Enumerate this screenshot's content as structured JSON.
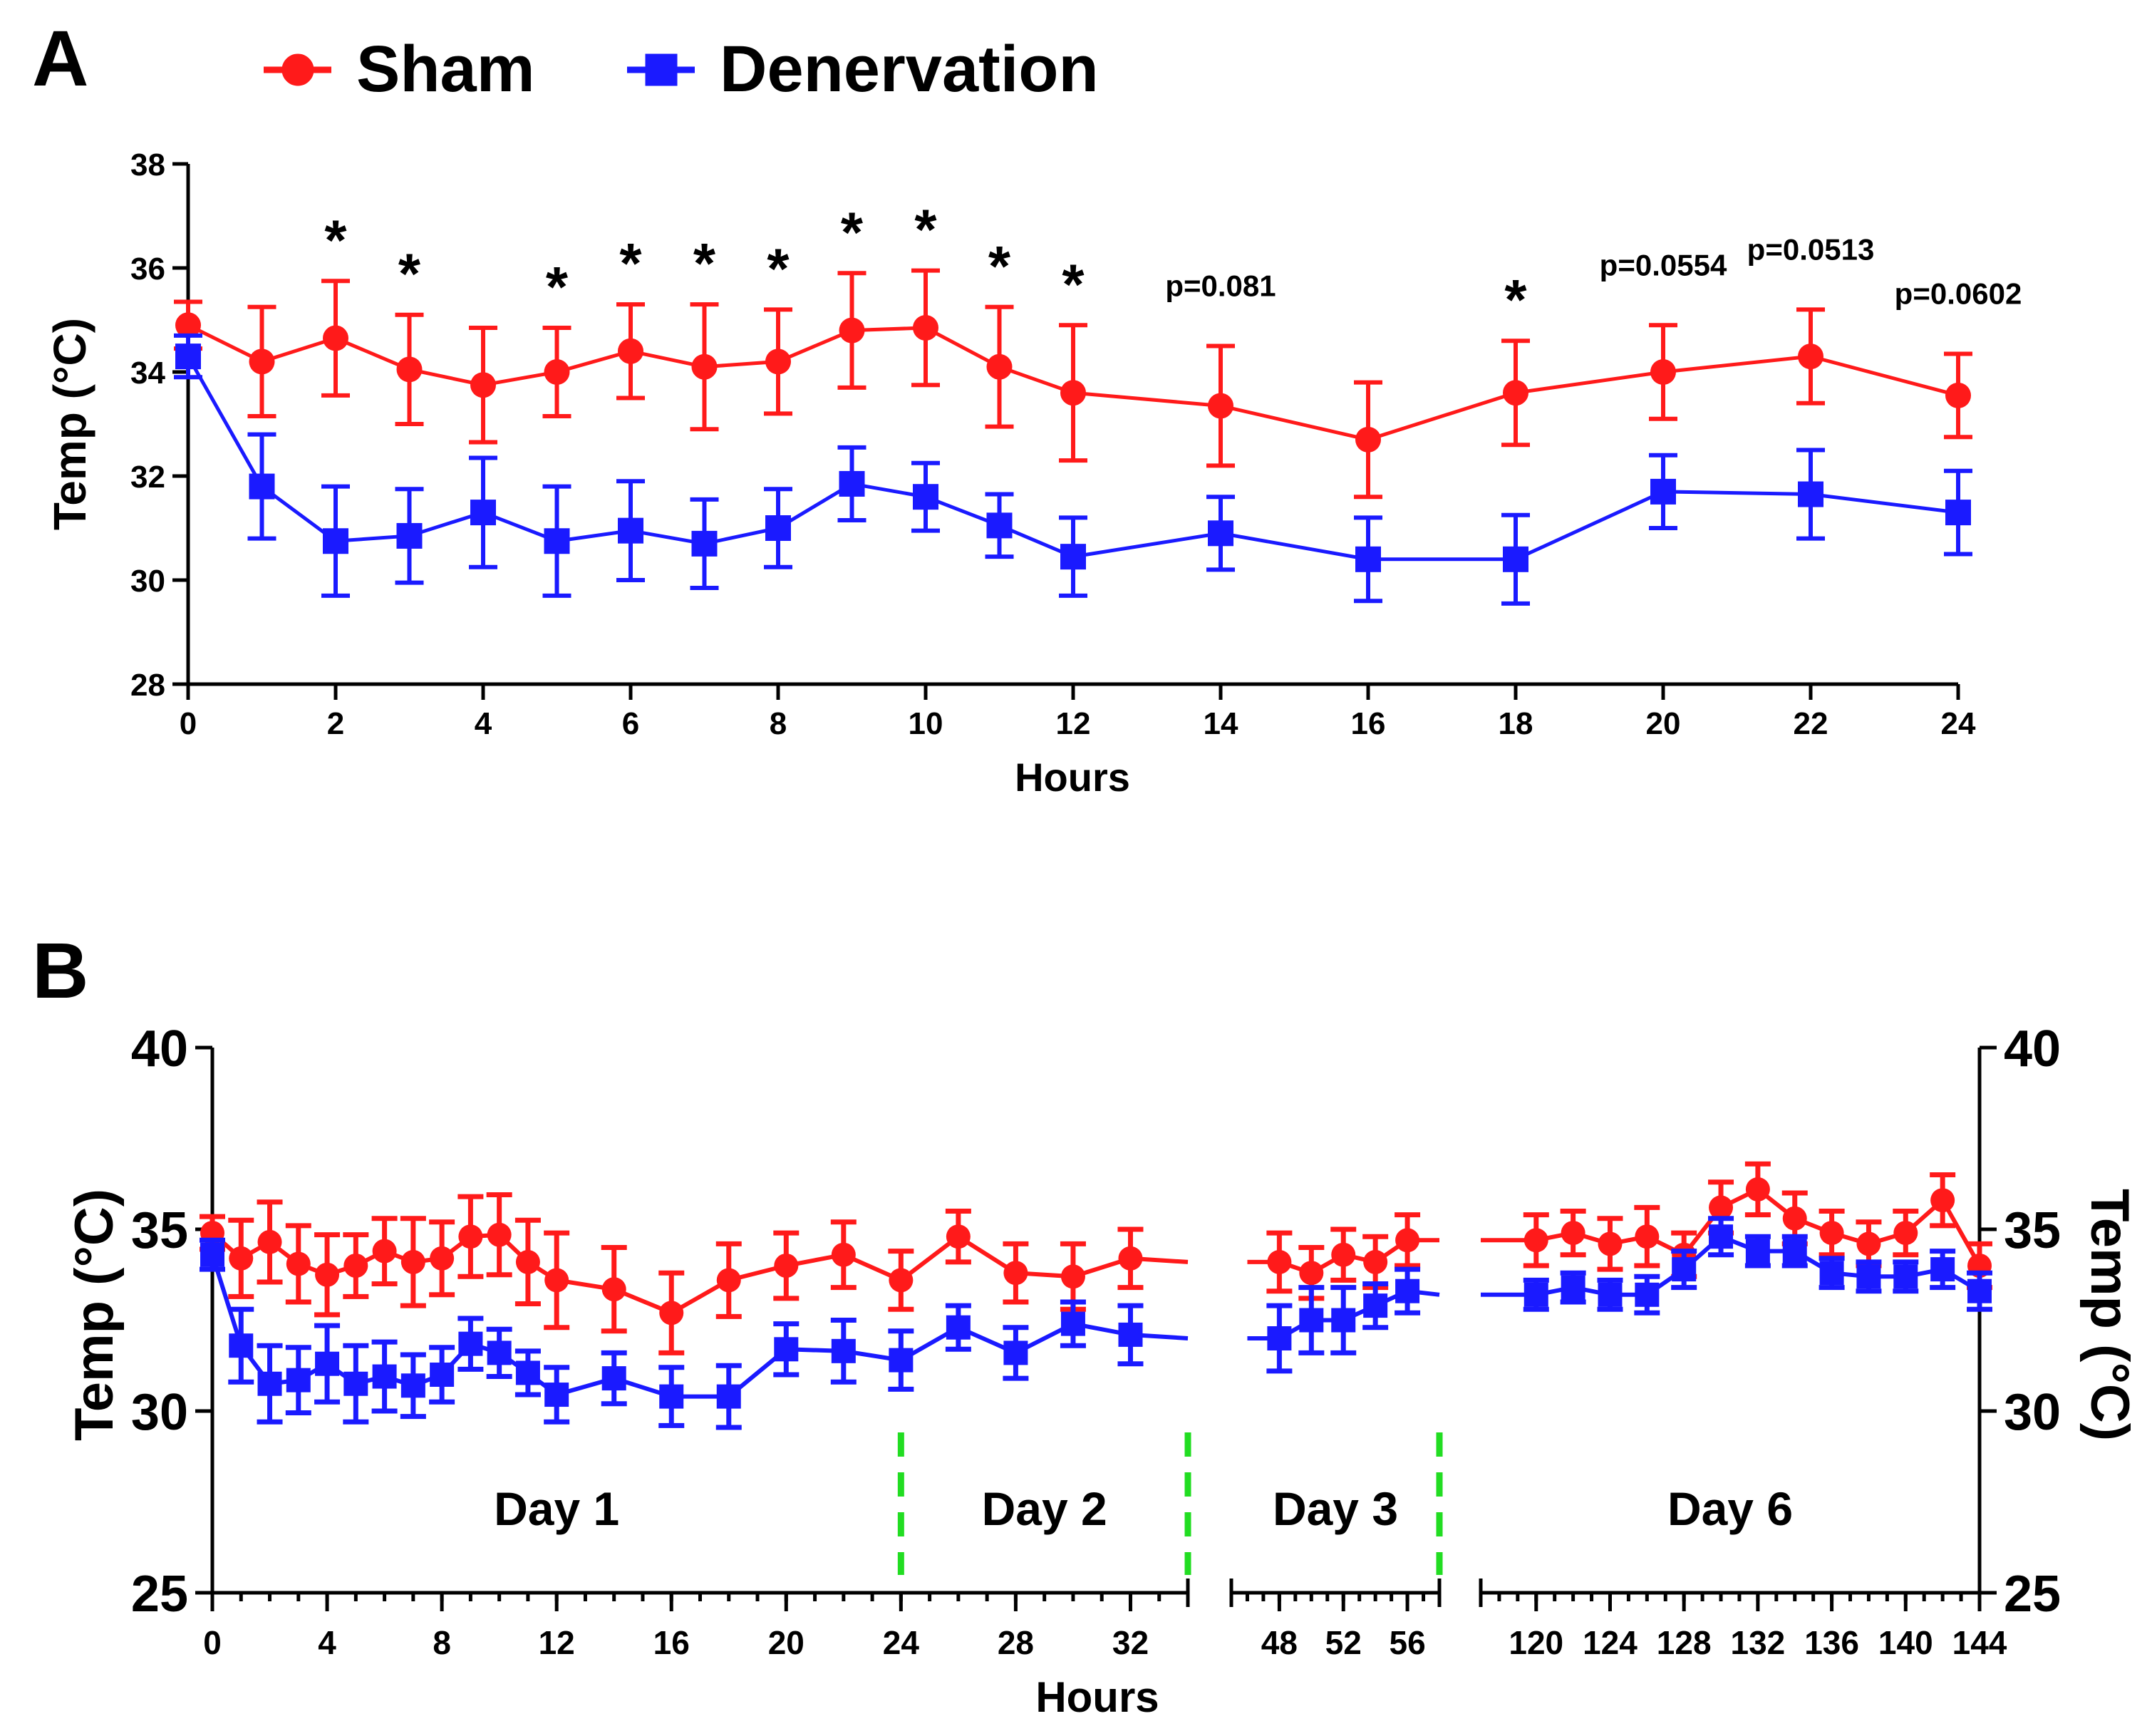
{
  "chart_data": [
    {
      "type": "line",
      "panel_label": "A",
      "legend": {
        "placement": "top",
        "entries": [
          {
            "name": "Sham",
            "marker": "circle",
            "color": "#ff1a1a"
          },
          {
            "name": "Denervation",
            "marker": "square",
            "color": "#1a1aff"
          }
        ]
      },
      "xlabel": "Hours",
      "ylabel": "Temp (°C)",
      "xlim": [
        0,
        24
      ],
      "ylim": [
        28,
        38
      ],
      "xticks": [
        0,
        2,
        4,
        6,
        8,
        10,
        12,
        14,
        16,
        18,
        20,
        22,
        24
      ],
      "yticks": [
        28,
        30,
        32,
        34,
        36,
        38
      ],
      "series": [
        {
          "name": "Sham",
          "color": "#ff1a1a",
          "x": [
            0,
            1,
            2,
            3,
            4,
            5,
            6,
            7,
            8,
            9,
            10,
            11,
            12,
            14,
            16,
            18,
            20,
            22,
            24
          ],
          "y": [
            34.9,
            34.2,
            34.65,
            34.05,
            33.75,
            34.0,
            34.4,
            34.1,
            34.2,
            34.8,
            34.85,
            34.1,
            33.6,
            33.35,
            32.7,
            33.6,
            34.0,
            34.3,
            33.55
          ],
          "err": [
            0.45,
            1.05,
            1.1,
            1.05,
            1.1,
            0.85,
            0.9,
            1.2,
            1.0,
            1.1,
            1.1,
            1.15,
            1.3,
            1.15,
            1.1,
            1.0,
            0.9,
            0.9,
            0.8
          ]
        },
        {
          "name": "Denervation",
          "color": "#1a1aff",
          "x": [
            0,
            1,
            2,
            3,
            4,
            5,
            6,
            7,
            8,
            9,
            10,
            11,
            12,
            14,
            16,
            18,
            20,
            22,
            24
          ],
          "y": [
            34.3,
            31.8,
            30.75,
            30.85,
            31.3,
            30.75,
            30.95,
            30.7,
            31.0,
            31.85,
            31.6,
            31.05,
            30.45,
            30.9,
            30.4,
            30.4,
            31.7,
            31.65,
            31.3
          ],
          "err": [
            0.4,
            1.0,
            1.05,
            0.9,
            1.05,
            1.05,
            0.95,
            0.85,
            0.75,
            0.7,
            0.65,
            0.6,
            0.75,
            0.7,
            0.8,
            0.85,
            0.7,
            0.85,
            0.8
          ]
        }
      ],
      "annotations": [
        {
          "x": 2,
          "text": "*"
        },
        {
          "x": 3,
          "text": "*"
        },
        {
          "x": 5,
          "text": "*"
        },
        {
          "x": 6,
          "text": "*"
        },
        {
          "x": 7,
          "text": "*"
        },
        {
          "x": 8,
          "text": "*"
        },
        {
          "x": 9,
          "text": "*"
        },
        {
          "x": 10,
          "text": "*"
        },
        {
          "x": 11,
          "text": "*"
        },
        {
          "x": 12,
          "text": "*"
        },
        {
          "x": 14,
          "text": "p=0.081"
        },
        {
          "x": 18,
          "text": "*"
        },
        {
          "x": 20,
          "text": "p=0.0554"
        },
        {
          "x": 22,
          "text": "p=0.0513"
        },
        {
          "x": 24,
          "text": "p=0.0602"
        }
      ]
    },
    {
      "type": "line",
      "panel_label": "B",
      "xlabel": "Hours",
      "ylabel": "Temp (°C)",
      "ylabel_right": "Temp (°C)",
      "ylim": [
        25,
        40
      ],
      "yticks": [
        25,
        30,
        35,
        40
      ],
      "x_axis_segments": [
        {
          "range": [
            0,
            34
          ],
          "ticks": [
            0,
            4,
            8,
            12,
            16,
            20,
            24,
            28,
            32
          ]
        },
        {
          "range": [
            45,
            58
          ],
          "ticks": [
            48,
            52,
            56
          ]
        },
        {
          "range": [
            117,
            144
          ],
          "ticks": [
            120,
            124,
            128,
            132,
            136,
            140,
            144
          ]
        }
      ],
      "day_labels": [
        {
          "text": "Day 1",
          "center_x": 12
        },
        {
          "text": "Day 2",
          "center_x": 29
        },
        {
          "text": "Day 3",
          "center_x": 51.5
        },
        {
          "text": "Day 6",
          "center_x": 130.5
        }
      ],
      "day_dividers_x": [
        24,
        34,
        58
      ],
      "segments": [
        {
          "series": [
            {
              "name": "Sham",
              "x": [
                0,
                1,
                2,
                3,
                4,
                5,
                6,
                7,
                8,
                9,
                10,
                11,
                12,
                14,
                16,
                18,
                20,
                22,
                24,
                26,
                28,
                30,
                32
              ],
              "y": [
                34.9,
                34.2,
                34.65,
                34.05,
                33.75,
                34.0,
                34.4,
                34.1,
                34.2,
                34.8,
                34.85,
                34.1,
                33.6,
                33.35,
                32.7,
                33.6,
                34.0,
                34.3,
                33.6,
                34.8,
                33.8,
                33.7,
                34.2
              ],
              "err": [
                0.45,
                1.05,
                1.1,
                1.05,
                1.1,
                0.85,
                0.9,
                1.2,
                1.0,
                1.1,
                1.1,
                1.15,
                1.3,
                1.15,
                1.1,
                1.0,
                0.9,
                0.9,
                0.8,
                0.7,
                0.8,
                0.9,
                0.8
              ],
              "tail_to": 34,
              "tail_y": 34.1
            },
            {
              "name": "Denervation",
              "x": [
                0,
                1,
                2,
                3,
                4,
                5,
                6,
                7,
                8,
                9,
                10,
                11,
                12,
                14,
                16,
                18,
                20,
                22,
                24,
                26,
                28,
                30,
                32
              ],
              "y": [
                34.3,
                31.8,
                30.75,
                30.85,
                31.3,
                30.75,
                30.95,
                30.7,
                31.0,
                31.85,
                31.6,
                31.05,
                30.45,
                30.9,
                30.4,
                30.4,
                31.7,
                31.65,
                31.4,
                32.3,
                31.6,
                32.4,
                32.1
              ],
              "err": [
                0.4,
                1.0,
                1.05,
                0.9,
                1.05,
                1.05,
                0.95,
                0.85,
                0.75,
                0.7,
                0.65,
                0.6,
                0.75,
                0.7,
                0.8,
                0.85,
                0.7,
                0.85,
                0.8,
                0.6,
                0.7,
                0.6,
                0.8
              ],
              "tail_to": 34,
              "tail_y": 32.0
            }
          ]
        },
        {
          "series": [
            {
              "name": "Sham",
              "x": [
                46,
                48,
                50,
                52,
                54,
                56
              ],
              "y": [
                34.1,
                34.1,
                33.8,
                34.3,
                34.1,
                34.7
              ],
              "err": [
                0,
                0.8,
                0.7,
                0.7,
                0.7,
                0.7
              ],
              "tail_to": 58,
              "tail_y": 34.7
            },
            {
              "name": "Denervation",
              "x": [
                46,
                48,
                50,
                52,
                54,
                56
              ],
              "y": [
                32.0,
                32.0,
                32.5,
                32.5,
                32.9,
                33.3
              ],
              "err": [
                0,
                0.9,
                0.9,
                0.9,
                0.6,
                0.6
              ],
              "tail_to": 58,
              "tail_y": 33.2
            }
          ]
        },
        {
          "series": [
            {
              "name": "Sham",
              "x": [
                118,
                120,
                122,
                124,
                126,
                128,
                130,
                132,
                134,
                136,
                138,
                140,
                142,
                144
              ],
              "y": [
                34.7,
                34.7,
                34.9,
                34.6,
                34.8,
                34.3,
                35.6,
                36.1,
                35.3,
                34.9,
                34.6,
                34.9,
                35.8,
                34.0
              ],
              "err": [
                0,
                0.7,
                0.6,
                0.7,
                0.8,
                0.6,
                0.7,
                0.7,
                0.7,
                0.6,
                0.6,
                0.6,
                0.7,
                0.6
              ],
              "tail_to": 117,
              "tail_y": 34.7
            },
            {
              "name": "Denervation",
              "x": [
                118,
                120,
                122,
                124,
                126,
                128,
                130,
                132,
                134,
                136,
                138,
                140,
                142,
                144
              ],
              "y": [
                33.2,
                33.2,
                33.4,
                33.2,
                33.2,
                33.9,
                34.8,
                34.4,
                34.4,
                33.8,
                33.7,
                33.7,
                33.9,
                33.3
              ],
              "err": [
                0,
                0.4,
                0.4,
                0.4,
                0.5,
                0.5,
                0.5,
                0.4,
                0.4,
                0.4,
                0.4,
                0.4,
                0.5,
                0.5
              ],
              "tail_to": 117,
              "tail_y": 33.2
            }
          ]
        }
      ]
    }
  ]
}
